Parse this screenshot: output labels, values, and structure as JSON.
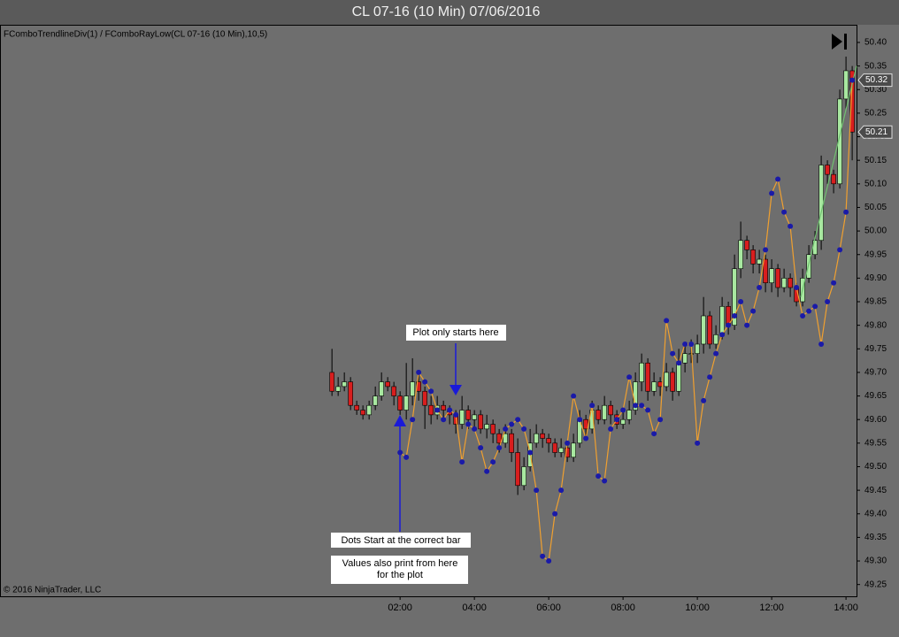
{
  "chart_data": {
    "type": "candlestick",
    "title": "CL 07-16 (10 Min)  07/06/2016",
    "indicator_label": "FComboTrendlineDiv(1) / FComboRayLow(CL 07-16 (10 Min),10,5)",
    "copyright": "© 2016 NinjaTrader, LLC",
    "x": [
      10,
      20,
      30,
      40,
      50,
      60,
      70,
      80,
      90,
      100,
      110,
      120,
      130,
      140,
      150,
      160,
      170,
      180,
      190,
      200,
      210,
      220,
      230,
      240,
      250,
      260,
      270,
      280,
      290,
      300,
      310,
      320,
      330,
      340,
      350,
      360,
      370,
      380,
      390,
      400,
      410,
      420,
      430,
      440,
      450,
      460,
      470,
      480,
      490,
      500,
      510,
      520,
      530,
      540,
      550,
      560,
      570,
      580,
      590,
      600,
      610,
      620,
      630,
      640,
      650,
      660,
      670,
      680,
      690,
      700,
      710,
      720,
      730,
      740,
      750,
      760,
      770,
      780,
      790,
      800,
      810,
      820,
      830,
      840,
      850
    ],
    "open": [
      49.7,
      49.66,
      49.67,
      49.68,
      49.63,
      49.62,
      49.61,
      49.63,
      49.65,
      49.68,
      49.67,
      49.65,
      49.62,
      49.65,
      49.68,
      49.66,
      49.63,
      49.61,
      49.63,
      49.62,
      49.61,
      49.59,
      49.62,
      49.6,
      49.61,
      49.58,
      49.59,
      49.57,
      49.55,
      49.57,
      49.53,
      49.46,
      49.5,
      49.55,
      49.57,
      49.56,
      49.55,
      49.53,
      49.54,
      49.52,
      49.55,
      49.6,
      49.58,
      49.62,
      49.6,
      49.63,
      49.61,
      49.59,
      49.6,
      49.62,
      49.68,
      49.72,
      49.66,
      49.68,
      49.67,
      49.7,
      49.66,
      49.72,
      49.74,
      49.74,
      49.76,
      49.82,
      49.76,
      49.78,
      49.84,
      49.8,
      49.92,
      49.98,
      49.96,
      49.93,
      49.94,
      49.89,
      49.92,
      49.88,
      49.9,
      49.88,
      49.85,
      49.9,
      49.95,
      49.98,
      50.14,
      50.12,
      50.1,
      50.28,
      50.34
    ],
    "high": [
      49.75,
      49.69,
      49.7,
      49.69,
      49.64,
      49.63,
      49.64,
      49.67,
      49.7,
      49.69,
      49.68,
      49.66,
      49.72,
      49.73,
      49.7,
      49.67,
      49.65,
      49.65,
      49.64,
      49.63,
      49.62,
      49.65,
      49.63,
      49.62,
      49.62,
      49.61,
      49.6,
      49.58,
      49.59,
      49.58,
      49.56,
      49.52,
      49.58,
      49.59,
      49.58,
      49.57,
      49.56,
      49.56,
      49.55,
      49.57,
      49.62,
      49.61,
      49.64,
      49.63,
      49.65,
      49.64,
      49.62,
      49.62,
      49.64,
      49.7,
      49.74,
      49.73,
      49.7,
      49.69,
      49.72,
      49.71,
      49.75,
      49.76,
      49.77,
      49.78,
      49.86,
      49.83,
      49.8,
      49.86,
      49.85,
      49.95,
      50.02,
      49.99,
      49.97,
      49.96,
      49.95,
      49.94,
      49.93,
      49.92,
      49.91,
      49.89,
      49.92,
      49.97,
      50.0,
      50.16,
      50.15,
      50.13,
      50.3,
      50.37,
      50.35
    ],
    "low": [
      49.65,
      49.65,
      49.66,
      49.62,
      49.61,
      49.6,
      49.6,
      49.62,
      49.64,
      49.66,
      49.63,
      49.61,
      49.6,
      49.63,
      49.64,
      49.58,
      49.59,
      49.6,
      49.6,
      49.59,
      49.57,
      49.58,
      49.58,
      49.58,
      49.57,
      49.56,
      49.55,
      49.53,
      49.54,
      49.51,
      49.44,
      49.45,
      49.49,
      49.54,
      49.54,
      49.53,
      49.52,
      49.52,
      49.51,
      49.51,
      49.54,
      49.56,
      49.57,
      49.59,
      49.59,
      49.59,
      49.58,
      49.58,
      49.59,
      49.61,
      49.66,
      49.64,
      49.65,
      49.65,
      49.66,
      49.64,
      49.65,
      49.7,
      49.72,
      49.72,
      49.74,
      49.75,
      49.75,
      49.77,
      49.78,
      49.79,
      49.9,
      49.94,
      49.91,
      49.91,
      49.87,
      49.87,
      49.86,
      49.87,
      49.86,
      49.84,
      49.84,
      49.89,
      49.94,
      49.96,
      50.1,
      50.08,
      50.09,
      50.26,
      50.15
    ],
    "close": [
      49.66,
      49.67,
      49.68,
      49.63,
      49.62,
      49.61,
      49.63,
      49.65,
      49.68,
      49.67,
      49.65,
      49.62,
      49.65,
      49.68,
      49.66,
      49.63,
      49.61,
      49.63,
      49.62,
      49.61,
      49.59,
      49.62,
      49.6,
      49.61,
      49.58,
      49.59,
      49.57,
      49.55,
      49.57,
      49.53,
      49.46,
      49.5,
      49.55,
      49.57,
      49.56,
      49.55,
      49.53,
      49.54,
      49.52,
      49.55,
      49.6,
      49.58,
      49.62,
      49.6,
      49.63,
      49.61,
      49.59,
      49.6,
      49.62,
      49.68,
      49.72,
      49.66,
      49.68,
      49.67,
      49.7,
      49.66,
      49.72,
      49.74,
      49.74,
      49.76,
      49.82,
      49.76,
      49.78,
      49.84,
      49.8,
      49.92,
      49.98,
      49.96,
      49.93,
      49.94,
      49.89,
      49.92,
      49.88,
      49.9,
      49.88,
      49.85,
      49.9,
      49.95,
      49.98,
      50.14,
      50.12,
      50.1,
      50.28,
      50.34,
      50.21
    ],
    "up_color": "#a8e8a0",
    "down_color": "#d81e1e",
    "plot": {
      "color": "#f0a030",
      "dot_color": "#1a1aa8",
      "values": [
        null,
        null,
        null,
        null,
        null,
        null,
        null,
        null,
        null,
        null,
        null,
        49.53,
        49.52,
        49.6,
        49.7,
        49.68,
        49.66,
        49.62,
        49.6,
        49.62,
        49.61,
        49.51,
        49.59,
        49.58,
        49.54,
        49.49,
        49.51,
        49.54,
        49.58,
        49.59,
        49.6,
        49.58,
        49.53,
        49.45,
        49.31,
        49.3,
        49.4,
        49.45,
        49.55,
        49.65,
        49.6,
        49.56,
        49.63,
        49.48,
        49.47,
        49.58,
        49.6,
        49.62,
        49.69,
        49.63,
        49.63,
        49.62,
        49.57,
        49.6,
        49.81,
        49.74,
        49.72,
        49.76,
        49.76,
        49.55,
        49.64,
        49.69,
        49.74,
        49.78,
        49.8,
        49.82,
        49.85,
        49.8,
        49.83,
        49.88,
        49.96,
        50.08,
        50.11,
        50.04,
        50.01,
        49.88,
        49.82,
        49.83,
        49.84,
        49.76,
        49.85,
        49.89,
        49.96,
        50.04,
        50.32
      ]
    },
    "trendline": {
      "color": "#70c070",
      "x": [
        767,
        857
      ],
      "values": [
        49.86,
        50.35
      ]
    },
    "price_markers": [
      50.32,
      50.21
    ],
    "annotations": [
      "Plot only starts here",
      "Dots Start at the correct bar",
      "Values also print from here",
      "for the plot"
    ],
    "xlim": [
      -526,
      857
    ],
    "ylim": [
      49.225,
      50.4375
    ],
    "xticks": [
      {
        "value": 120,
        "label": "02:00"
      },
      {
        "value": 240,
        "label": "04:00"
      },
      {
        "value": 360,
        "label": "06:00"
      },
      {
        "value": 480,
        "label": "08:00"
      },
      {
        "value": 600,
        "label": "10:00"
      },
      {
        "value": 720,
        "label": "12:00"
      },
      {
        "value": 840,
        "label": "14:00"
      }
    ],
    "yticks": [
      49.25,
      {
        "value": 49.3,
        "label": "49.30"
      },
      49.35,
      {
        "value": 49.4,
        "label": "49.40"
      },
      49.45,
      {
        "value": 49.5,
        "label": "49.50"
      },
      49.55,
      {
        "value": 49.6,
        "label": "49.60"
      },
      49.65,
      {
        "value": 49.7,
        "label": "49.70"
      },
      49.75,
      {
        "value": 49.8,
        "label": "49.80"
      },
      49.85,
      {
        "value": 49.9,
        "label": "49.90"
      },
      49.95,
      {
        "value": 50,
        "label": "50.00"
      },
      50.05,
      {
        "value": 50.1,
        "label": "50.10"
      },
      50.15,
      {
        "value": 50.2,
        "label": "50.20"
      },
      50.25,
      {
        "value": 50.3,
        "label": "50.30"
      },
      50.35,
      {
        "value": 50.4,
        "label": "50.40"
      }
    ]
  }
}
